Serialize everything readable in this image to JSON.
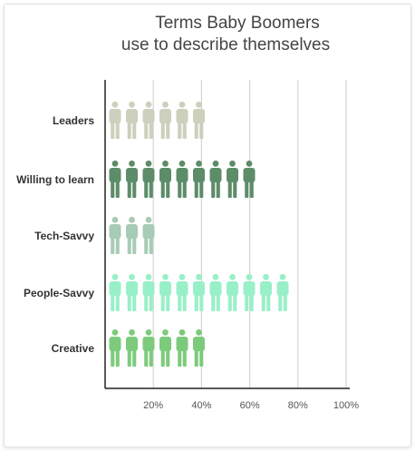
{
  "chart_data": {
    "type": "bar",
    "title_line1": "Terms Baby Boomers",
    "title_line2": "use to describe themselves",
    "xlabel": "",
    "ylabel": "",
    "categories": [
      "Leaders",
      "Willing to learn",
      "Tech-Savvy",
      "People-Savvy",
      "Creative"
    ],
    "values": [
      40,
      60,
      20,
      75,
      40
    ],
    "colors": [
      "#ccd0bc",
      "#5d8c69",
      "#a8cbb6",
      "#99f0c8",
      "#7ccb7c"
    ],
    "xlim": [
      0,
      100
    ],
    "xticks": [
      "20%",
      "40%",
      "60%",
      "80%",
      "100%"
    ],
    "xtick_values": [
      20,
      40,
      60,
      80,
      100
    ],
    "grid": "vertical",
    "icon": "person-icon",
    "percent_per_icon": 7
  }
}
